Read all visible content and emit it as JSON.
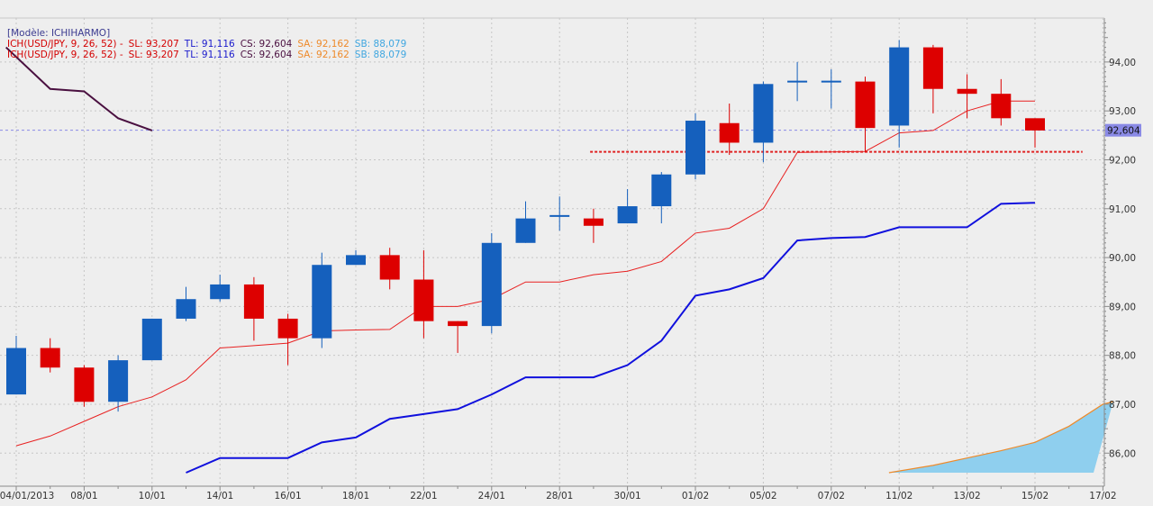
{
  "chart_data": {
    "type": "candlestick",
    "model_label": "[Modèle: ICHIHARMO]",
    "legend": [
      {
        "name": "ICH(USD/JPY, 9, 26, 52) -",
        "color": "#d40000",
        "items": [
          {
            "label": "SL: 93,207",
            "color": "#d40000"
          },
          {
            "label": "TL: 91,116",
            "color": "#1a1acc"
          },
          {
            "label": "CS: 92,604",
            "color": "#4a1040"
          },
          {
            "label": "SA: 92,162",
            "color": "#ee8a2a"
          },
          {
            "label": "SB: 88,079",
            "color": "#3fa6e0"
          }
        ]
      },
      {
        "name": "ICH(USD/JPY, 9, 26, 52) -",
        "color": "#d40000",
        "items": [
          {
            "label": "SL: 93,207",
            "color": "#d40000"
          },
          {
            "label": "TL: 91,116",
            "color": "#1a1acc"
          },
          {
            "label": "CS: 92,604",
            "color": "#4a1040"
          },
          {
            "label": "SA: 92,162",
            "color": "#ee8a2a"
          },
          {
            "label": "SB: 88,079",
            "color": "#3fa6e0"
          }
        ]
      }
    ],
    "y_ticks": [
      "86,00",
      "87,00",
      "88,00",
      "89,00",
      "90,00",
      "91,00",
      "92,00",
      "93,00",
      "94,00"
    ],
    "y_tick_values": [
      86,
      87,
      88,
      89,
      90,
      91,
      92,
      93,
      94
    ],
    "ylim": [
      85.6,
      94.9
    ],
    "x_ticks": [
      {
        "label": "04/01/2013",
        "i": 0
      },
      {
        "label": "08/01",
        "i": 2
      },
      {
        "label": "10/01",
        "i": 4
      },
      {
        "label": "14/01",
        "i": 6
      },
      {
        "label": "16/01",
        "i": 8
      },
      {
        "label": "18/01",
        "i": 10
      },
      {
        "label": "22/01",
        "i": 12
      },
      {
        "label": "24/01",
        "i": 14
      },
      {
        "label": "28/01",
        "i": 16
      },
      {
        "label": "30/01",
        "i": 18
      },
      {
        "label": "01/02",
        "i": 20
      },
      {
        "label": "05/02",
        "i": 22
      },
      {
        "label": "07/02",
        "i": 24
      },
      {
        "label": "11/02",
        "i": 26
      },
      {
        "label": "13/02",
        "i": 28
      },
      {
        "label": "15/02",
        "i": 30
      },
      {
        "label": "17/02",
        "i": 32
      }
    ],
    "current_price": 92.604,
    "current_price_label": "92,604",
    "support_level": 92.162,
    "colors": {
      "up": "#1560bd",
      "down": "#dd0000",
      "tenkan": "#e82020",
      "kijun": "#1010dd",
      "chikou": "#4a1040",
      "senkou_a": "#ee8a2a",
      "cloud": "#8fcfee"
    },
    "candles": [
      {
        "i": 0,
        "o": 87.2,
        "h": 88.4,
        "l": 87.2,
        "c": 88.15
      },
      {
        "i": 1,
        "o": 88.15,
        "h": 88.35,
        "l": 87.65,
        "c": 87.75
      },
      {
        "i": 2,
        "o": 87.75,
        "h": 87.8,
        "l": 86.95,
        "c": 87.05
      },
      {
        "i": 3,
        "o": 87.05,
        "h": 88.0,
        "l": 86.85,
        "c": 87.9
      },
      {
        "i": 4,
        "o": 87.9,
        "h": 88.75,
        "l": 87.9,
        "c": 88.75
      },
      {
        "i": 5,
        "o": 88.75,
        "h": 89.4,
        "l": 88.7,
        "c": 89.15
      },
      {
        "i": 6,
        "o": 89.15,
        "h": 89.65,
        "l": 89.1,
        "c": 89.45
      },
      {
        "i": 7,
        "o": 89.45,
        "h": 89.6,
        "l": 88.3,
        "c": 88.75
      },
      {
        "i": 8,
        "o": 88.75,
        "h": 88.85,
        "l": 87.8,
        "c": 88.35
      },
      {
        "i": 9,
        "o": 88.35,
        "h": 90.1,
        "l": 88.15,
        "c": 89.85
      },
      {
        "i": 10,
        "o": 89.85,
        "h": 90.15,
        "l": 89.85,
        "c": 90.05
      },
      {
        "i": 11,
        "o": 90.05,
        "h": 90.2,
        "l": 89.35,
        "c": 89.55
      },
      {
        "i": 12,
        "o": 89.55,
        "h": 90.15,
        "l": 88.35,
        "c": 88.7
      },
      {
        "i": 13,
        "o": 88.7,
        "h": 88.7,
        "l": 88.05,
        "c": 88.6
      },
      {
        "i": 14,
        "o": 88.6,
        "h": 90.5,
        "l": 88.45,
        "c": 90.3
      },
      {
        "i": 15,
        "o": 90.3,
        "h": 91.15,
        "l": 90.3,
        "c": 90.8
      },
      {
        "i": 16,
        "o": 90.85,
        "h": 91.25,
        "l": 90.55,
        "c": 90.85
      },
      {
        "i": 17,
        "o": 90.8,
        "h": 91.0,
        "l": 90.3,
        "c": 90.65
      },
      {
        "i": 18,
        "o": 90.7,
        "h": 91.4,
        "l": 90.7,
        "c": 91.05
      },
      {
        "i": 19,
        "o": 91.05,
        "h": 91.75,
        "l": 90.7,
        "c": 91.7
      },
      {
        "i": 20,
        "o": 91.7,
        "h": 92.95,
        "l": 91.6,
        "c": 92.8
      },
      {
        "i": 21,
        "o": 92.75,
        "h": 93.15,
        "l": 92.1,
        "c": 92.35
      },
      {
        "i": 22,
        "o": 92.35,
        "h": 93.6,
        "l": 91.95,
        "c": 93.55
      },
      {
        "i": 23,
        "o": 93.6,
        "h": 94.0,
        "l": 93.2,
        "c": 93.6
      },
      {
        "i": 24,
        "o": 93.6,
        "h": 93.85,
        "l": 93.05,
        "c": 93.6
      },
      {
        "i": 25,
        "o": 93.6,
        "h": 93.7,
        "l": 92.15,
        "c": 92.65
      },
      {
        "i": 26,
        "o": 92.7,
        "h": 94.45,
        "l": 92.25,
        "c": 94.3
      },
      {
        "i": 27,
        "o": 94.3,
        "h": 94.35,
        "l": 92.95,
        "c": 93.45
      },
      {
        "i": 28,
        "o": 93.45,
        "h": 93.75,
        "l": 92.85,
        "c": 93.35
      },
      {
        "i": 29,
        "o": 93.35,
        "h": 93.65,
        "l": 92.7,
        "c": 92.85
      },
      {
        "i": 30,
        "o": 92.85,
        "h": 92.85,
        "l": 92.25,
        "c": 92.6
      }
    ],
    "tenkan": [
      [
        0,
        86.15
      ],
      [
        1,
        86.35
      ],
      [
        2,
        86.65
      ],
      [
        3,
        86.95
      ],
      [
        4,
        87.15
      ],
      [
        5,
        87.5
      ],
      [
        6,
        88.15
      ],
      [
        7,
        88.2
      ],
      [
        8,
        88.25
      ],
      [
        9,
        88.5
      ],
      [
        10,
        88.52
      ],
      [
        11,
        88.53
      ],
      [
        12,
        89.0
      ],
      [
        13,
        89.0
      ],
      [
        14,
        89.15
      ],
      [
        15,
        89.5
      ],
      [
        16,
        89.5
      ],
      [
        17,
        89.65
      ],
      [
        18,
        89.72
      ],
      [
        19,
        89.92
      ],
      [
        20,
        90.5
      ],
      [
        21,
        90.6
      ],
      [
        22,
        91.0
      ],
      [
        23,
        92.15
      ],
      [
        24,
        92.16
      ],
      [
        25,
        92.17
      ],
      [
        26,
        92.55
      ],
      [
        27,
        92.6
      ],
      [
        28,
        93.0
      ],
      [
        29,
        93.2
      ],
      [
        30,
        93.2
      ]
    ],
    "kijun": [
      [
        5,
        85.6
      ],
      [
        6,
        85.9
      ],
      [
        7,
        85.9
      ],
      [
        8,
        85.9
      ],
      [
        9,
        86.22
      ],
      [
        10,
        86.32
      ],
      [
        11,
        86.7
      ],
      [
        12,
        86.8
      ],
      [
        13,
        86.9
      ],
      [
        14,
        87.2
      ],
      [
        15,
        87.55
      ],
      [
        16,
        87.55
      ],
      [
        17,
        87.55
      ],
      [
        18,
        87.8
      ],
      [
        19,
        88.3
      ],
      [
        20,
        89.22
      ],
      [
        21,
        89.35
      ],
      [
        22,
        89.58
      ],
      [
        23,
        90.35
      ],
      [
        24,
        90.4
      ],
      [
        25,
        90.42
      ],
      [
        26,
        90.62
      ],
      [
        27,
        90.62
      ],
      [
        28,
        90.62
      ],
      [
        29,
        91.1
      ],
      [
        30,
        91.12
      ]
    ],
    "chikou": [
      [
        -0.3,
        94.3
      ],
      [
        1,
        93.45
      ],
      [
        2,
        93.4
      ],
      [
        3,
        92.85
      ],
      [
        4,
        92.6
      ]
    ],
    "senkou_a": [
      [
        25.7,
        85.6
      ],
      [
        27,
        85.75
      ],
      [
        28,
        85.9
      ],
      [
        29,
        86.05
      ],
      [
        30,
        86.22
      ],
      [
        31,
        86.55
      ],
      [
        32,
        87.0
      ],
      [
        32.3,
        87.05
      ]
    ]
  }
}
